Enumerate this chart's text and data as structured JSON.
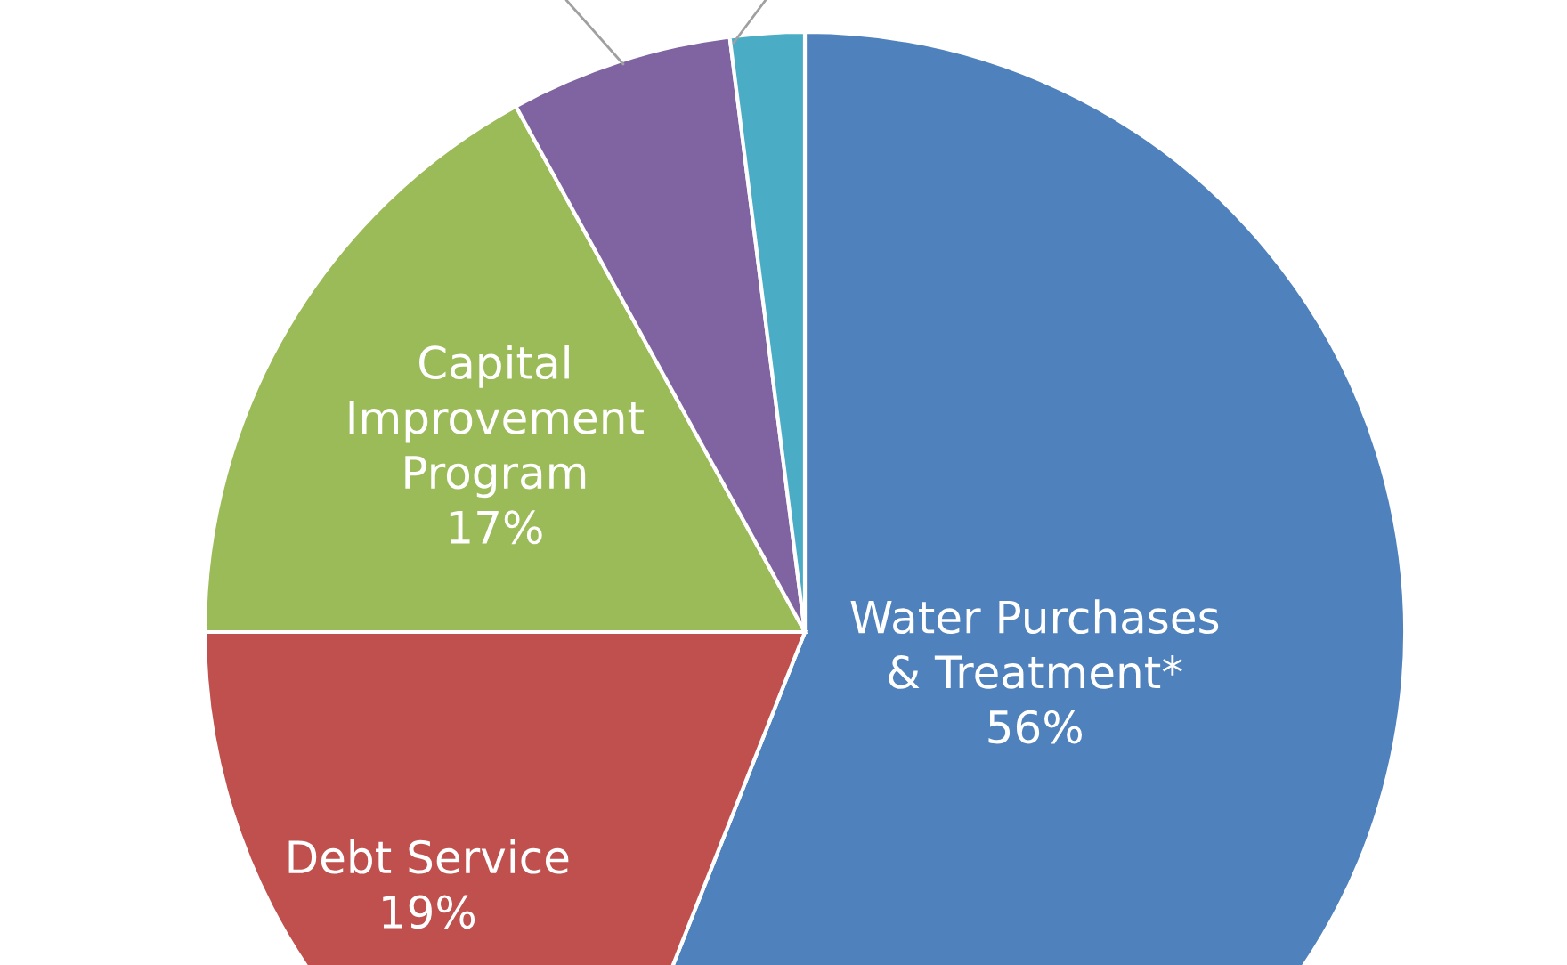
{
  "chart_data": {
    "type": "pie",
    "categories": [
      "Water Purchases\n& Treatment*",
      "Debt Service",
      "Capital\nImprovement\nProgram",
      null,
      null
    ],
    "values": [
      56,
      19,
      17,
      6,
      2
    ],
    "value_labels": [
      "56%",
      "19%",
      "17%",
      null,
      null
    ],
    "colors": [
      "#4f81bd",
      "#c0504d",
      "#9bbb59",
      "#8064a2",
      "#4bacc6"
    ],
    "legend": false
  }
}
